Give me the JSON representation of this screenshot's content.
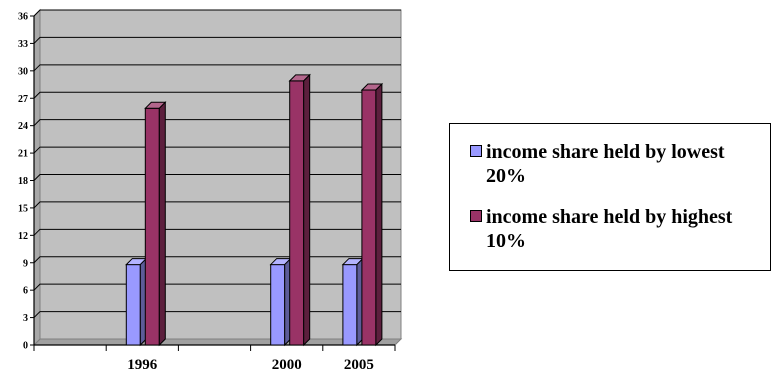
{
  "chart_data": {
    "type": "bar",
    "categories": [
      "",
      "1996",
      "",
      "2000",
      "2005"
    ],
    "series": [
      {
        "name": "income share held by lowest 20%",
        "values": [
          null,
          8.8,
          null,
          8.8,
          8.8
        ],
        "color": "#9999ff"
      },
      {
        "name": "income share held by highest 10%",
        "values": [
          null,
          25.9,
          null,
          28.9,
          27.9
        ],
        "color": "#993366"
      }
    ],
    "ylim": [
      0,
      36
    ],
    "yticks": [
      "0",
      "3",
      "6",
      "9",
      "12",
      "15",
      "18",
      "21",
      "24",
      "27",
      "30",
      "33",
      "36"
    ],
    "grid": true,
    "plot_background": "#c0c0c0",
    "legend_position": "right"
  }
}
